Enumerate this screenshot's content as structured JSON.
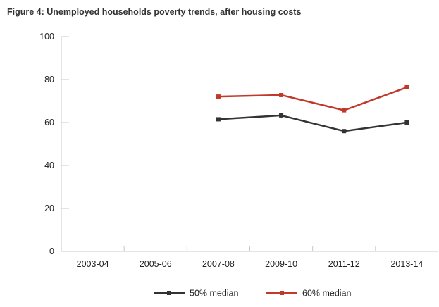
{
  "chart_data": {
    "type": "line",
    "title": "Figure 4: Unemployed households poverty trends, after housing costs",
    "xlabel": "",
    "ylabel": "",
    "categories": [
      "2003-04",
      "2005-06",
      "2007-08",
      "2009-10",
      "2011-12",
      "2013-14"
    ],
    "ylim": [
      0,
      100
    ],
    "yticks": [
      0,
      20,
      40,
      60,
      80,
      100
    ],
    "grid": false,
    "legend": "bottom-center",
    "series": [
      {
        "name": "50% median",
        "color": "#333333",
        "values": [
          null,
          null,
          61.5,
          63.3,
          56,
          60
        ]
      },
      {
        "name": "60% median",
        "color": "#c0392b",
        "values": [
          null,
          null,
          72.1,
          72.8,
          65.7,
          76.4
        ]
      }
    ]
  }
}
